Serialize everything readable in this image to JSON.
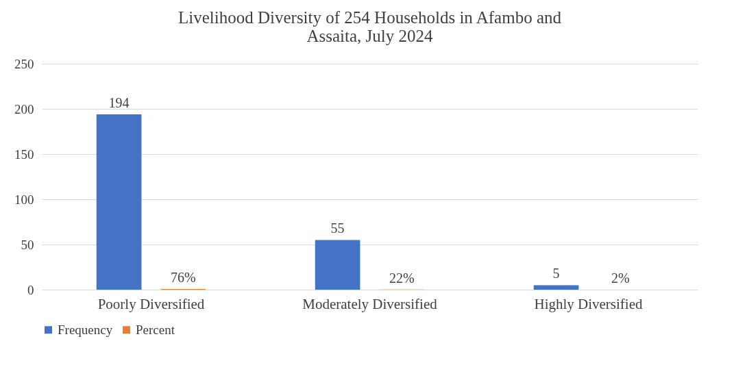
{
  "chart_data": {
    "type": "bar",
    "title": "Livelihood Diversity of 254 Households in Afambo and Assaita, July 2024",
    "categories": [
      "Poorly Diversified",
      "Moderately Diversified",
      "Highly Diversified"
    ],
    "series": [
      {
        "name": "Frequency",
        "color": "#4472c4",
        "values": [
          194,
          55,
          5
        ],
        "value_labels": [
          "194",
          "55",
          "5"
        ]
      },
      {
        "name": "Percent",
        "color": "#ed7d31",
        "values": [
          0.76,
          0.22,
          0.02
        ],
        "value_labels": [
          "76%",
          "22%",
          "2%"
        ]
      }
    ],
    "ylim": [
      0,
      250
    ],
    "yticks": [
      0,
      50,
      100,
      150,
      200,
      250
    ],
    "grid": "y",
    "legend": "bottom"
  }
}
